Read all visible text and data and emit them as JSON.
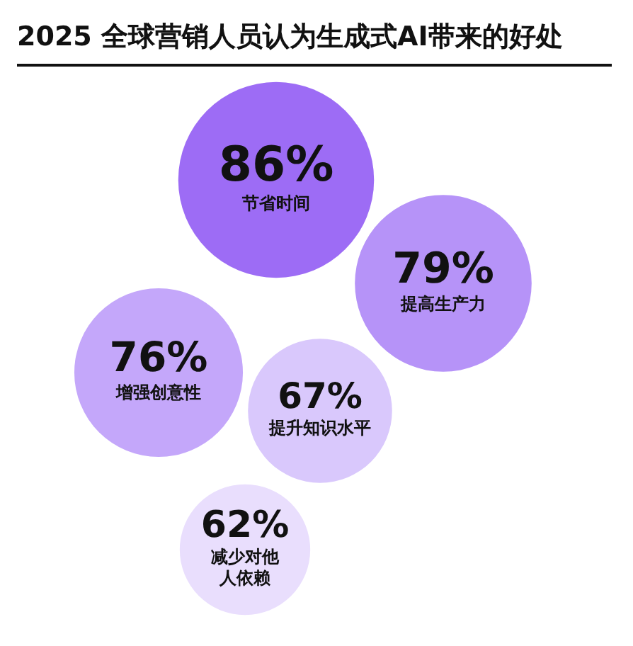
{
  "chart_data": {
    "type": "other",
    "title": "2025 全球营销人员认为生成式AI带来的好处",
    "categories": [
      "节省时间",
      "提高生产力",
      "增强创意性",
      "提升知识水平",
      "减少对他人依赖"
    ],
    "values": [
      86,
      79,
      76,
      67,
      62
    ],
    "value_labels": [
      "86%",
      "79%",
      "76%",
      "67%",
      "62%"
    ],
    "colors": [
      "#9d6cf5",
      "#b693f8",
      "#c4a7fa",
      "#d9c8fc",
      "#e9defd"
    ]
  }
}
